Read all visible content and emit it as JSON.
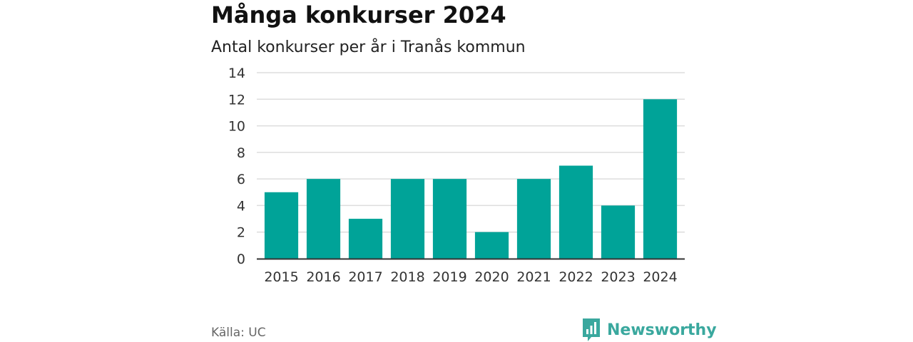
{
  "header": {
    "title": "Många konkurser 2024",
    "subtitle": "Antal konkurser per år i Tranås kommun"
  },
  "footer": {
    "source": "Källa: UC",
    "brand": "Newsworthy"
  },
  "colors": {
    "bar": "#00a398",
    "grid": "#dddddd",
    "axis": "#333333",
    "brand": "#3aa89e"
  },
  "chart_data": {
    "type": "bar",
    "categories": [
      "2015",
      "2016",
      "2017",
      "2018",
      "2019",
      "2020",
      "2021",
      "2022",
      "2023",
      "2024"
    ],
    "values": [
      5,
      6,
      3,
      6,
      6,
      2,
      6,
      7,
      4,
      12
    ],
    "yticks": [
      "0",
      "2",
      "4",
      "6",
      "8",
      "10",
      "12",
      "14"
    ],
    "ylim": [
      0,
      14
    ],
    "grid": true
  }
}
